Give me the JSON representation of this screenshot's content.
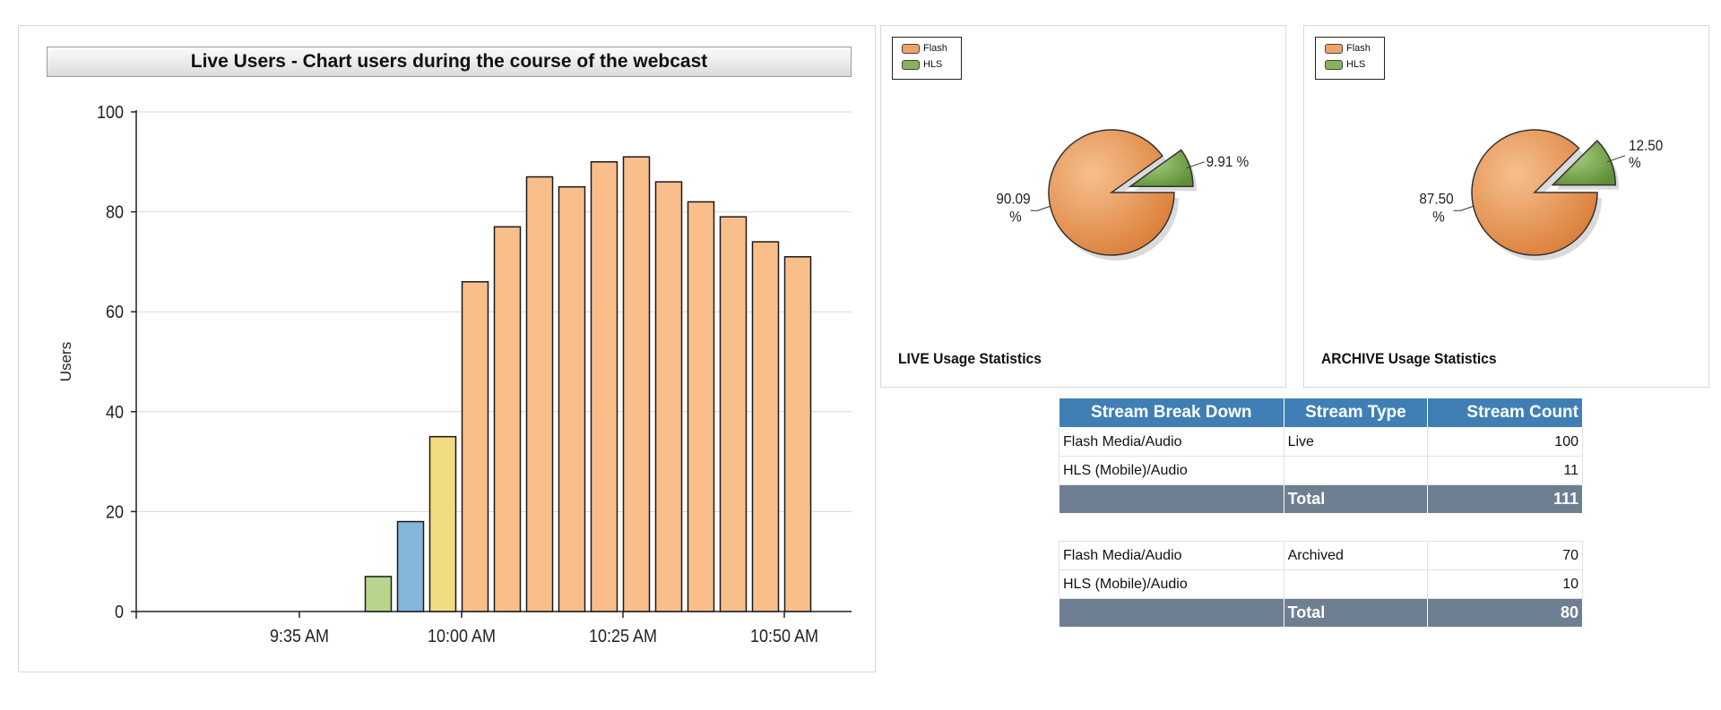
{
  "chart_data": [
    {
      "type": "bar",
      "title": "Live Users - Chart users during the course of the webcast",
      "ylabel": "Users",
      "xlabel": "",
      "ylim": [
        0,
        100
      ],
      "yticks": [
        0,
        20,
        40,
        60,
        80,
        100
      ],
      "x_tick_labels": [
        "9:35 AM",
        "10:00 AM",
        "10:25 AM",
        "10:50 AM"
      ],
      "grid": true,
      "values": [
        7,
        18,
        35,
        66,
        77,
        87,
        85,
        90,
        91,
        86,
        82,
        79,
        74,
        71
      ],
      "bar_colors": [
        "#b9d48c",
        "#84b6da",
        "#f2dc80",
        "#f9be8a",
        "#f9be8a",
        "#f9be8a",
        "#f9be8a",
        "#f9be8a",
        "#f9be8a",
        "#f9be8a",
        "#f9be8a",
        "#f9be8a",
        "#f9be8a",
        "#f9be8a"
      ]
    },
    {
      "type": "pie",
      "caption": "LIVE Usage Statistics",
      "legend": [
        "Flash",
        "HLS"
      ],
      "legend_placement": "top-left",
      "slices": [
        {
          "label": "Flash",
          "value": 90.09,
          "text": "90.09 %",
          "color": "#ef9a55"
        },
        {
          "label": "HLS",
          "value": 9.91,
          "text": "9.91 %",
          "color": "#7aa750"
        }
      ]
    },
    {
      "type": "pie",
      "caption": "ARCHIVE Usage Statistics",
      "legend": [
        "Flash",
        "HLS"
      ],
      "legend_placement": "top-left",
      "slices": [
        {
          "label": "Flash",
          "value": 87.5,
          "text": "87.50 %",
          "color": "#ef9a55"
        },
        {
          "label": "HLS",
          "value": 12.5,
          "text": "12.50 %",
          "color": "#7aa750"
        }
      ]
    },
    {
      "type": "table",
      "headers": [
        "Stream Break Down",
        "Stream Type",
        "Stream Count"
      ],
      "live_rows": [
        [
          "Flash Media/Audio",
          "Live",
          "100"
        ],
        [
          "HLS (Mobile)/Audio",
          "",
          "11"
        ]
      ],
      "live_total": [
        "",
        "Total",
        "111"
      ],
      "archive_rows": [
        [
          "Flash Media/Audio",
          "Archived",
          "70"
        ],
        [
          "HLS (Mobile)/Audio",
          "",
          "10"
        ]
      ],
      "archive_total": [
        "",
        "Total",
        "80"
      ]
    }
  ]
}
